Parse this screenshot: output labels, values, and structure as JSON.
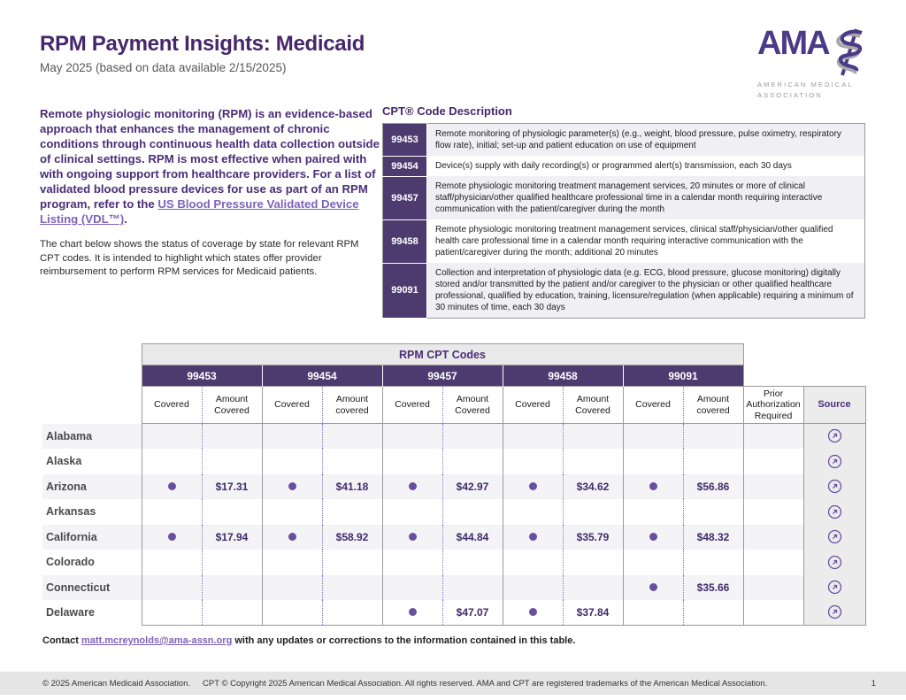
{
  "header": {
    "title": "RPM Payment Insights: Medicaid",
    "subtitle": "May 2025 (based on data available 2/15/2025)",
    "logo_text": "AMA",
    "logo_subtext": "AMERICAN MEDICAL ASSOCIATION"
  },
  "intro": {
    "lead": "Remote physiologic monitoring (RPM) is an evidence-based approach that enhances the management of chronic conditions through continuous health data collection outside of clinical settings. RPM is most effective when paired with with ongoing support from healthcare providers. For a list of validated blood pressure devices for use as part of an RPM program, refer to the ",
    "link_text": "US Blood Pressure Validated Device Listing (VDL™)",
    "lead_end": ".",
    "note": "The chart below shows the status of coverage by state for relevant RPM CPT codes. It is intended to highlight which states offer provider reimbursement to perform RPM services for Medicaid patients."
  },
  "cpt_description": {
    "title": "CPT® Code Description",
    "rows": [
      {
        "code": "99453",
        "description": "Remote monitoring of physiologic parameter(s) (e.g., weight, blood pressure, pulse oximetry, respiratory flow rate), initial; set-up and patient education on use of equipment"
      },
      {
        "code": "99454",
        "description": "Device(s) supply with daily recording(s) or programmed alert(s) transmission, each 30 days"
      },
      {
        "code": "99457",
        "description": "Remote physiologic monitoring treatment management services, 20 minutes or more of clinical staff/physician/other qualified healthcare professional time in a calendar month requiring interactive communication with the patient/caregiver during the month"
      },
      {
        "code": "99458",
        "description": "Remote physiologic monitoring treatment management services, clinical staff/physician/other qualified health care professional time in a calendar month requiring interactive communication with the patient/caregiver during the month; additional 20 minutes"
      },
      {
        "code": "99091",
        "description": "Collection and interpretation of physiologic data (e.g. ECG, blood pressure, glucose monitoring) digitally stored and/or transmitted by the patient and/or caregiver to the physician or other qualified healthcare professional, qualified by education, training, licensure/regulation (when applicable) requiring a minimum of 30 minutes of time, each 30 days"
      }
    ]
  },
  "main_table": {
    "title": "RPM CPT Codes",
    "code_groups": [
      {
        "code": "99453",
        "covered_label": "Covered",
        "amount_label": "Amount Covered"
      },
      {
        "code": "99454",
        "covered_label": "Covered",
        "amount_label": "Amount covered"
      },
      {
        "code": "99457",
        "covered_label": "Covered",
        "amount_label": "Amount Covered"
      },
      {
        "code": "99458",
        "covered_label": "Covered",
        "amount_label": "Amount Covered"
      },
      {
        "code": "99091",
        "covered_label": "Covered",
        "amount_label": "Amount covered"
      }
    ],
    "prior_auth_header": "Prior Authorization Required",
    "source_header": "Source",
    "source_icon": "external-link-icon",
    "rows": [
      {
        "state": "Alabama",
        "codes": [
          null,
          null,
          null,
          null,
          null
        ],
        "prior_auth": "",
        "source": true
      },
      {
        "state": "Alaska",
        "codes": [
          null,
          null,
          null,
          null,
          null
        ],
        "prior_auth": "",
        "source": true
      },
      {
        "state": "Arizona",
        "codes": [
          {
            "covered": true,
            "amount": "$17.31"
          },
          {
            "covered": true,
            "amount": "$41.18"
          },
          {
            "covered": true,
            "amount": "$42.97"
          },
          {
            "covered": true,
            "amount": "$34.62"
          },
          {
            "covered": true,
            "amount": "$56.86"
          }
        ],
        "prior_auth": "",
        "source": true
      },
      {
        "state": "Arkansas",
        "codes": [
          null,
          null,
          null,
          null,
          null
        ],
        "prior_auth": "",
        "source": true
      },
      {
        "state": "California",
        "codes": [
          {
            "covered": true,
            "amount": "$17.94"
          },
          {
            "covered": true,
            "amount": "$58.92"
          },
          {
            "covered": true,
            "amount": "$44.84"
          },
          {
            "covered": true,
            "amount": "$35.79"
          },
          {
            "covered": true,
            "amount": "$48.32"
          }
        ],
        "prior_auth": "",
        "source": true
      },
      {
        "state": "Colorado",
        "codes": [
          null,
          null,
          null,
          null,
          null
        ],
        "prior_auth": "",
        "source": true
      },
      {
        "state": "Connecticut",
        "codes": [
          null,
          null,
          null,
          null,
          {
            "covered": true,
            "amount": "$35.66"
          }
        ],
        "prior_auth": "",
        "source": true
      },
      {
        "state": "Delaware",
        "codes": [
          null,
          null,
          {
            "covered": true,
            "amount": "$47.07"
          },
          {
            "covered": true,
            "amount": "$37.84"
          },
          null
        ],
        "prior_auth": "",
        "source": true
      }
    ]
  },
  "contact": {
    "pre": "Contact",
    "email": "matt.mcreynolds@ama-assn.org",
    "post": "with any updates or corrections to the information contained in this table."
  },
  "footer": {
    "copyright_1": "© 2025 American Medicaid Association.",
    "copyright_2": "CPT © Copyright 2025 American Medical Association. All rights reserved. AMA and CPT are registered trademarks of the American Medical Association.",
    "page_number": "1"
  },
  "colors": {
    "brand_purple": "#46266b",
    "band_purple": "#4d3b70",
    "dot_purple": "#6a4fa1",
    "link_purple": "#7d63b8",
    "stripe_gray": "#f4f4f6",
    "source_col_gray": "#ececec",
    "footer_gray": "#e5e5e5"
  }
}
